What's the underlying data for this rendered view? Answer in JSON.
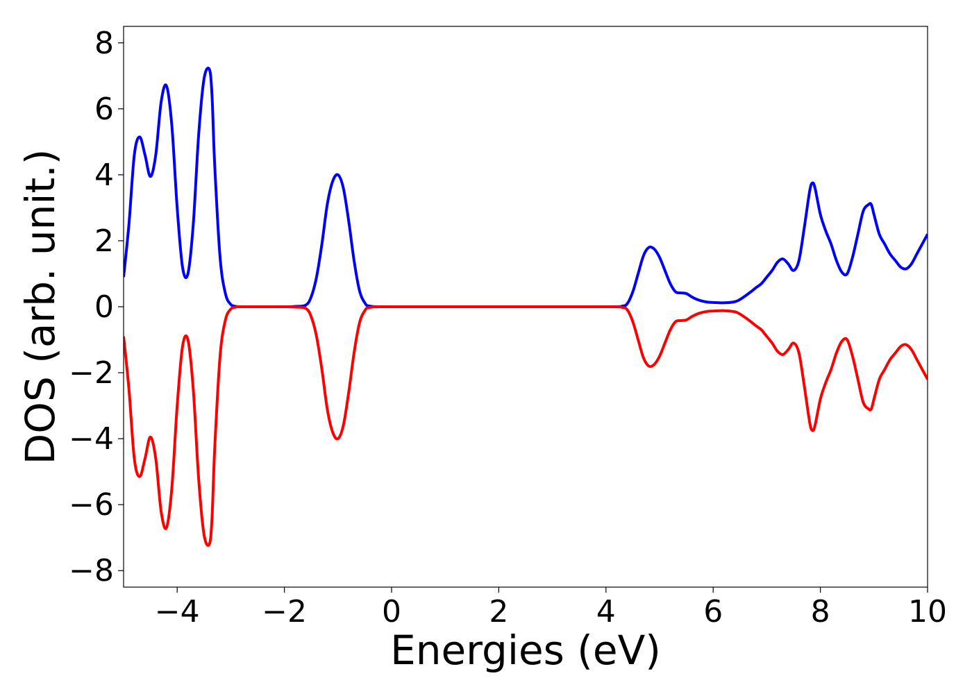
{
  "chart_data": {
    "type": "line",
    "title": "",
    "xlabel": "Energies (eV)",
    "ylabel": "DOS (arb. unit.)",
    "xlim": [
      -5,
      10
    ],
    "ylim": [
      -8.5,
      8.5
    ],
    "xticks": [
      -4,
      -2,
      0,
      2,
      4,
      6,
      8,
      10
    ],
    "xtick_labels": [
      "−4",
      "−2",
      "0",
      "2",
      "4",
      "6",
      "8",
      "10"
    ],
    "yticks": [
      8,
      6,
      4,
      2,
      0,
      -2,
      -4,
      -6,
      -8
    ],
    "ytick_labels": [
      "8",
      "6",
      "4",
      "2",
      "0",
      "−2",
      "−4",
      "−6",
      "−8"
    ],
    "grid": false,
    "legend": "none",
    "series": [
      {
        "color": "#0000ff",
        "x": [
          -5.0,
          -4.9,
          -4.8,
          -4.7,
          -4.6,
          -4.5,
          -4.4,
          -4.3,
          -4.2,
          -4.1,
          -4.0,
          -3.9,
          -3.8,
          -3.7,
          -3.6,
          -3.5,
          -3.4,
          -3.35,
          -3.3,
          -3.2,
          -3.1,
          -3.0,
          -2.9,
          -2.8,
          -2.0,
          -1.8,
          -1.6,
          -1.5,
          -1.4,
          -1.3,
          -1.2,
          -1.1,
          -1.0,
          -0.9,
          -0.8,
          -0.7,
          -0.6,
          -0.5,
          -0.4,
          0.0,
          2.0,
          4.0,
          4.3,
          4.4,
          4.5,
          4.6,
          4.7,
          4.8,
          4.9,
          5.0,
          5.1,
          5.2,
          5.3,
          5.4,
          5.5,
          5.6,
          5.7,
          5.8,
          5.9,
          6.0,
          6.2,
          6.4,
          6.5,
          6.6,
          6.7,
          6.8,
          6.9,
          7.0,
          7.1,
          7.2,
          7.3,
          7.4,
          7.5,
          7.6,
          7.7,
          7.8,
          7.85,
          7.9,
          8.0,
          8.1,
          8.2,
          8.3,
          8.4,
          8.5,
          8.6,
          8.7,
          8.8,
          8.9,
          8.95,
          9.0,
          9.1,
          9.2,
          9.3,
          9.4,
          9.5,
          9.6,
          9.7,
          9.8,
          9.9,
          10.0
        ],
        "y": [
          0.9,
          2.5,
          4.6,
          5.15,
          4.6,
          3.95,
          4.6,
          6.2,
          6.7,
          5.5,
          3.0,
          1.2,
          1.0,
          2.5,
          5.2,
          6.9,
          7.2,
          6.4,
          4.3,
          1.5,
          0.4,
          0.07,
          0.01,
          0.0,
          0.0,
          0.01,
          0.05,
          0.3,
          0.9,
          1.9,
          3.1,
          3.8,
          4.0,
          3.6,
          2.6,
          1.4,
          0.5,
          0.12,
          0.02,
          0.0,
          0.0,
          0.0,
          0.02,
          0.1,
          0.45,
          1.0,
          1.55,
          1.8,
          1.75,
          1.5,
          1.1,
          0.7,
          0.45,
          0.42,
          0.4,
          0.3,
          0.22,
          0.17,
          0.14,
          0.13,
          0.12,
          0.15,
          0.22,
          0.33,
          0.45,
          0.58,
          0.7,
          0.9,
          1.1,
          1.35,
          1.45,
          1.3,
          1.1,
          1.4,
          2.4,
          3.5,
          3.75,
          3.6,
          2.8,
          2.3,
          1.9,
          1.4,
          1.05,
          1.0,
          1.5,
          2.2,
          2.9,
          3.1,
          3.1,
          2.8,
          2.2,
          1.9,
          1.6,
          1.4,
          1.2,
          1.15,
          1.3,
          1.6,
          1.9,
          2.2
        ]
      },
      {
        "color": "#ff0000",
        "x": [
          -5.0,
          -4.9,
          -4.8,
          -4.7,
          -4.6,
          -4.5,
          -4.4,
          -4.3,
          -4.2,
          -4.1,
          -4.0,
          -3.9,
          -3.8,
          -3.7,
          -3.6,
          -3.5,
          -3.4,
          -3.35,
          -3.3,
          -3.2,
          -3.1,
          -3.0,
          -2.9,
          -2.8,
          -2.0,
          -1.8,
          -1.6,
          -1.5,
          -1.4,
          -1.3,
          -1.2,
          -1.1,
          -1.0,
          -0.9,
          -0.8,
          -0.7,
          -0.6,
          -0.5,
          -0.4,
          0.0,
          2.0,
          4.0,
          4.3,
          4.4,
          4.5,
          4.6,
          4.7,
          4.8,
          4.9,
          5.0,
          5.1,
          5.2,
          5.3,
          5.4,
          5.5,
          5.6,
          5.7,
          5.8,
          5.9,
          6.0,
          6.2,
          6.4,
          6.5,
          6.6,
          6.7,
          6.8,
          6.9,
          7.0,
          7.1,
          7.2,
          7.3,
          7.4,
          7.5,
          7.6,
          7.7,
          7.8,
          7.85,
          7.9,
          8.0,
          8.1,
          8.2,
          8.3,
          8.4,
          8.5,
          8.6,
          8.7,
          8.8,
          8.9,
          8.95,
          9.0,
          9.1,
          9.2,
          9.3,
          9.4,
          9.5,
          9.6,
          9.7,
          9.8,
          9.9,
          10.0
        ],
        "y": [
          -0.9,
          -2.5,
          -4.6,
          -5.15,
          -4.6,
          -3.95,
          -4.6,
          -6.2,
          -6.7,
          -5.5,
          -3.0,
          -1.2,
          -1.0,
          -2.5,
          -5.2,
          -6.9,
          -7.2,
          -6.4,
          -4.3,
          -1.5,
          -0.4,
          -0.07,
          -0.01,
          0.0,
          0.0,
          -0.01,
          -0.05,
          -0.3,
          -0.9,
          -1.9,
          -3.1,
          -3.8,
          -4.0,
          -3.6,
          -2.6,
          -1.4,
          -0.5,
          -0.12,
          -0.02,
          0.0,
          0.0,
          0.0,
          -0.02,
          -0.1,
          -0.45,
          -1.0,
          -1.55,
          -1.8,
          -1.75,
          -1.5,
          -1.1,
          -0.7,
          -0.45,
          -0.42,
          -0.4,
          -0.3,
          -0.22,
          -0.17,
          -0.14,
          -0.13,
          -0.12,
          -0.15,
          -0.22,
          -0.33,
          -0.45,
          -0.58,
          -0.7,
          -0.9,
          -1.1,
          -1.35,
          -1.45,
          -1.3,
          -1.1,
          -1.4,
          -2.4,
          -3.5,
          -3.75,
          -3.6,
          -2.8,
          -2.3,
          -1.9,
          -1.4,
          -1.05,
          -1.0,
          -1.5,
          -2.2,
          -2.9,
          -3.1,
          -3.1,
          -2.8,
          -2.2,
          -1.9,
          -1.6,
          -1.4,
          -1.2,
          -1.15,
          -1.3,
          -1.6,
          -1.9,
          -2.2
        ]
      }
    ]
  }
}
